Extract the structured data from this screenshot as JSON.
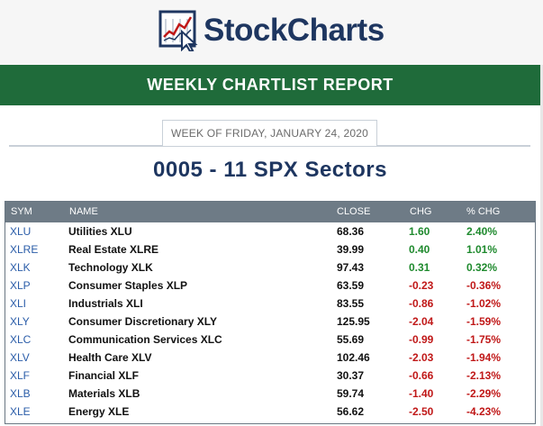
{
  "brand": {
    "name": "StockCharts"
  },
  "banner": {
    "title": "WEEKLY CHARTLIST REPORT"
  },
  "week": {
    "label": "WEEK OF FRIDAY, JANUARY 24, 2020"
  },
  "list_title": "0005 - 11 SPX Sectors",
  "colors": {
    "banner": "#1f6b3a",
    "brand": "#1e3660",
    "header_row": "#6e7b86",
    "up": "#1f8a2e",
    "down": "#c01818",
    "symbol": "#2a5ca8"
  },
  "table": {
    "headers": {
      "sym": "SYM",
      "name": "NAME",
      "close": "CLOSE",
      "chg": "CHG",
      "pct": "% CHG"
    },
    "rows": [
      {
        "sym": "XLU",
        "name": "Utilities XLU",
        "close": "68.36",
        "chg": "1.60",
        "pct": "2.40%",
        "dir": "up"
      },
      {
        "sym": "XLRE",
        "name": "Real Estate XLRE",
        "close": "39.99",
        "chg": "0.40",
        "pct": "1.01%",
        "dir": "up"
      },
      {
        "sym": "XLK",
        "name": "Technology XLK",
        "close": "97.43",
        "chg": "0.31",
        "pct": "0.32%",
        "dir": "up"
      },
      {
        "sym": "XLP",
        "name": "Consumer Staples XLP",
        "close": "63.59",
        "chg": "-0.23",
        "pct": "-0.36%",
        "dir": "down"
      },
      {
        "sym": "XLI",
        "name": "Industrials XLI",
        "close": "83.55",
        "chg": "-0.86",
        "pct": "-1.02%",
        "dir": "down"
      },
      {
        "sym": "XLY",
        "name": "Consumer Discretionary XLY",
        "close": "125.95",
        "chg": "-2.04",
        "pct": "-1.59%",
        "dir": "down"
      },
      {
        "sym": "XLC",
        "name": "Communication Services XLC",
        "close": "55.69",
        "chg": "-0.99",
        "pct": "-1.75%",
        "dir": "down"
      },
      {
        "sym": "XLV",
        "name": "Health Care XLV",
        "close": "102.46",
        "chg": "-2.03",
        "pct": "-1.94%",
        "dir": "down"
      },
      {
        "sym": "XLF",
        "name": "Financial XLF",
        "close": "30.37",
        "chg": "-0.66",
        "pct": "-2.13%",
        "dir": "down"
      },
      {
        "sym": "XLB",
        "name": "Materials XLB",
        "close": "59.74",
        "chg": "-1.40",
        "pct": "-2.29%",
        "dir": "down"
      },
      {
        "sym": "XLE",
        "name": "Energy XLE",
        "close": "56.62",
        "chg": "-2.50",
        "pct": "-4.23%",
        "dir": "down"
      }
    ]
  }
}
